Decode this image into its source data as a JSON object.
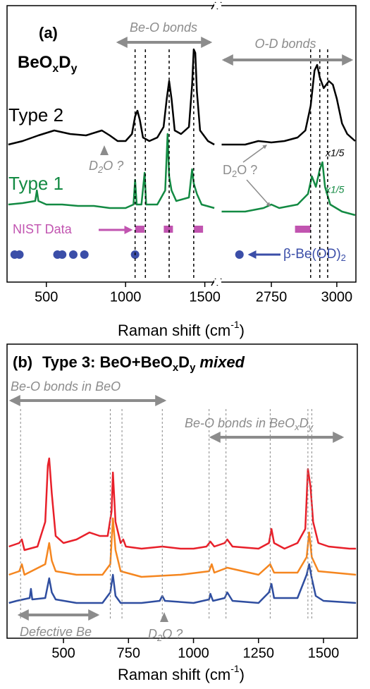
{
  "chart_data": [
    {
      "type": "line",
      "panel": "(a)",
      "compound": [
        "BeO",
        "x",
        "D",
        "y"
      ],
      "ylim": [
        0,
        392
      ],
      "segments": [
        {
          "xlim": [
            252,
            1564
          ],
          "xticks": [
            500,
            1000,
            1500
          ],
          "series": [
            {
              "name": "Type 2",
              "color": "#000000",
              "x": [
                260,
                350,
                450,
                550,
                650,
                750,
                850,
                900,
                950,
                1000,
                1040,
                1060,
                1075,
                1090,
                1110,
                1150,
                1200,
                1240,
                1260,
                1275,
                1290,
                1310,
                1350,
                1400,
                1420,
                1430,
                1440,
                1450,
                1470,
                1520,
                1560
              ],
              "values": [
                195,
                200,
                208,
                215,
                210,
                208,
                215,
                208,
                200,
                200,
                210,
                235,
                243,
                230,
                205,
                200,
                205,
                220,
                260,
                285,
                260,
                215,
                210,
                220,
                280,
                330,
                325,
                270,
                215,
                200,
                195
              ]
            },
            {
              "name": "Type 1",
              "color": "#138a43",
              "x": [
                260,
                350,
                430,
                440,
                450,
                500,
                600,
                700,
                800,
                900,
                1000,
                1050,
                1060,
                1070,
                1100,
                1120,
                1130,
                1200,
                1250,
                1265,
                1275,
                1290,
                1320,
                1400,
                1420,
                1430,
                1450,
                1480,
                1560
              ],
              "values": [
                110,
                112,
                115,
                130,
                115,
                110,
                110,
                108,
                108,
                105,
                105,
                110,
                145,
                110,
                110,
                155,
                110,
                110,
                130,
                210,
                150,
                130,
                115,
                120,
                160,
                140,
                125,
                110,
                105
              ]
            }
          ],
          "peak_lines": [
            1060,
            1125,
            1275,
            1430
          ],
          "nist": [
            1090,
            1270,
            1460
          ],
          "beta_be_od2": [
            300,
            330,
            570,
            600,
            670,
            740,
            1060
          ]
        },
        {
          "xlim": [
            2556,
            3073
          ],
          "xticks": [
            2750,
            3000
          ],
          "series": [
            {
              "color": "#000000",
              "x": [
                2560,
                2650,
                2700,
                2750,
                2800,
                2850,
                2880,
                2900,
                2915,
                2925,
                2935,
                2950,
                2970,
                2985,
                3000,
                3020,
                3040,
                3070
              ],
              "values": [
                195,
                195,
                200,
                198,
                200,
                205,
                215,
                250,
                300,
                308,
                290,
                275,
                285,
                280,
                260,
                225,
                210,
                200
              ]
            },
            {
              "color": "#138a43",
              "x": [
                2560,
                2650,
                2720,
                2750,
                2780,
                2850,
                2890,
                2905,
                2920,
                2935,
                2945,
                2955,
                2975,
                3020,
                3070
              ],
              "values": [
                100,
                100,
                105,
                110,
                105,
                110,
                125,
                150,
                135,
                160,
                170,
                135,
                110,
                100,
                95
              ]
            }
          ],
          "peak_lines": [
            2900,
            2935,
            2965
          ],
          "nist": [
            2870
          ],
          "beta_be_od2": [
            2628
          ]
        }
      ],
      "annotations": {
        "be_o": "Be-O  bonds",
        "o_d": "O-D bonds",
        "d2o": [
          "D",
          "2",
          "O ?"
        ],
        "d2o_right": [
          "D",
          "2",
          "O ?"
        ],
        "scale_type2": "x1/5",
        "scale_type1": "x1/5",
        "nist": "NIST Data",
        "beta": [
          "β-Be(OD)",
          "2"
        ]
      },
      "x_label": [
        "Raman shift (cm",
        "-1",
        ")"
      ]
    },
    {
      "type": "line",
      "panel": "(b)",
      "title": [
        "Type 3: BeO+BeO",
        "x",
        "D",
        "y",
        "mixed"
      ],
      "xlim": [
        283,
        1630
      ],
      "xticks": [
        500,
        750,
        1000,
        1250,
        1500
      ],
      "ylim": [
        0,
        417
      ],
      "series": [
        {
          "color": "#e8202a",
          "x": [
            290,
            330,
            340,
            350,
            400,
            430,
            440,
            445,
            455,
            470,
            500,
            550,
            600,
            640,
            670,
            685,
            690,
            700,
            720,
            730,
            740,
            800,
            880,
            950,
            1000,
            1050,
            1065,
            1080,
            1120,
            1130,
            1150,
            1250,
            1290,
            1300,
            1310,
            1350,
            1400,
            1430,
            1440,
            1450,
            1460,
            1480,
            1520,
            1600,
            1625
          ],
          "values": [
            130,
            135,
            140,
            125,
            130,
            165,
            245,
            255,
            205,
            145,
            135,
            140,
            150,
            145,
            145,
            180,
            235,
            165,
            135,
            140,
            130,
            127,
            130,
            127,
            127,
            130,
            137,
            130,
            135,
            140,
            130,
            127,
            135,
            155,
            135,
            127,
            135,
            155,
            240,
            215,
            165,
            135,
            130,
            127,
            127
          ]
        },
        {
          "color": "#f5861f",
          "x": [
            290,
            330,
            340,
            350,
            430,
            445,
            455,
            470,
            550,
            650,
            680,
            690,
            700,
            720,
            800,
            950,
            1060,
            1070,
            1080,
            1130,
            1250,
            1295,
            1310,
            1400,
            1435,
            1445,
            1455,
            1480,
            1625
          ],
          "values": [
            90,
            95,
            105,
            90,
            105,
            135,
            110,
            95,
            90,
            90,
            105,
            170,
            125,
            95,
            87,
            90,
            95,
            105,
            93,
            100,
            90,
            105,
            93,
            93,
            115,
            150,
            115,
            95,
            90
          ]
        },
        {
          "color": "#2f4ea0",
          "x": [
            290,
            320,
            370,
            375,
            380,
            430,
            445,
            455,
            470,
            550,
            650,
            680,
            690,
            700,
            720,
            800,
            870,
            880,
            890,
            1000,
            1060,
            1065,
            1075,
            1120,
            1130,
            1150,
            1250,
            1290,
            1300,
            1310,
            1400,
            1435,
            1445,
            1455,
            1470,
            1500,
            1625
          ],
          "values": [
            50,
            53,
            57,
            70,
            55,
            57,
            85,
            65,
            55,
            50,
            50,
            65,
            90,
            60,
            50,
            50,
            53,
            60,
            53,
            50,
            55,
            63,
            53,
            57,
            65,
            53,
            50,
            65,
            77,
            57,
            57,
            90,
            105,
            85,
            60,
            53,
            50
          ]
        }
      ],
      "peak_lines": [
        335,
        680,
        725,
        880,
        1060,
        1125,
        1295,
        1440,
        1455
      ],
      "annotations": {
        "beo": "Be-O  bonds in BeO",
        "beoxdy": [
          "Be-O  bonds in BeO",
          "x",
          "D",
          "y"
        ],
        "defective": "Defective Be",
        "d2o": [
          "D",
          "2",
          "O ?"
        ]
      },
      "x_label": [
        "Raman shift (cm",
        "-1",
        ")"
      ]
    }
  ]
}
